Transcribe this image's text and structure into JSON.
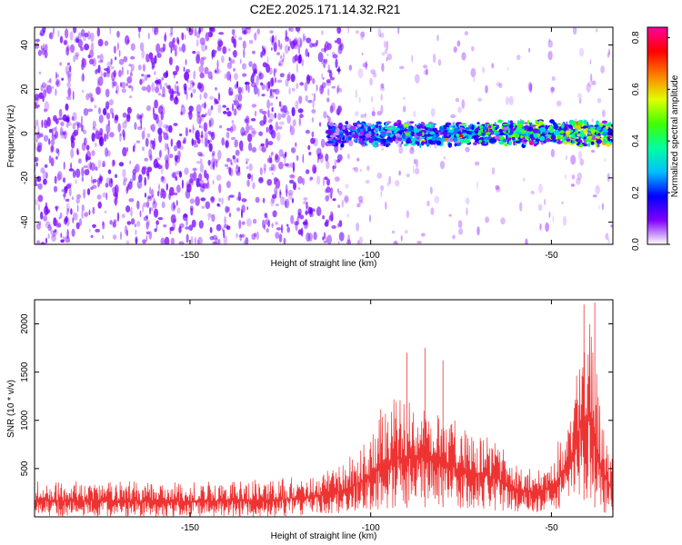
{
  "page_title": "C2E2.2025.171.14.32.R21",
  "chart_data": [
    {
      "type": "heatmap",
      "xlabel": "Height of straight line (km)",
      "ylabel": "Frequency (Hz)",
      "xlim": [
        -193,
        -33
      ],
      "ylim": [
        -50,
        48
      ],
      "x_ticks": [
        -150,
        -100,
        -50
      ],
      "y_ticks": [
        -40,
        -20,
        0,
        20,
        40
      ],
      "colorbar": {
        "label": "Normalized spectral amplitude",
        "range": [
          0.0,
          0.84
        ],
        "ticks": [
          "0.0",
          "0.2",
          "0.4",
          "0.6",
          "0.8"
        ],
        "colormap": [
          "#ffffff",
          "#8000ff",
          "#0000ff",
          "#00c0ff",
          "#00ffa0",
          "#40ff00",
          "#e0ff00",
          "#ff8000",
          "#ff0000",
          "#ff00a0"
        ]
      },
      "features": {
        "noise_region": {
          "x_range": [
            -193,
            -108
          ],
          "max_amplitude": 0.12
        },
        "carrier_band": {
          "x_range": [
            -112,
            -33
          ],
          "frequency_center": 0,
          "frequency_halfwidth": 5,
          "max_amplitude": 0.84
        }
      },
      "grid": false
    },
    {
      "type": "line",
      "xlabel": "Height of straight line (km)",
      "ylabel": "SNR (10 * v/v)",
      "xlim": [
        -193,
        -33
      ],
      "ylim": [
        0,
        2250
      ],
      "x_ticks": [
        -150,
        -100,
        -50
      ],
      "y_ticks": [
        500,
        1000,
        1500,
        2000
      ],
      "color": "#ee3333",
      "envelope": {
        "x": [
          -193,
          -150,
          -125,
          -112,
          -105,
          -100,
          -97,
          -92,
          -88,
          -84,
          -80,
          -76,
          -70,
          -65,
          -60,
          -55,
          -50,
          -47,
          -44,
          -42,
          -40,
          -38,
          -36,
          -33
        ],
        "low": [
          0,
          0,
          0,
          20,
          40,
          60,
          80,
          90,
          100,
          100,
          100,
          90,
          80,
          60,
          50,
          40,
          50,
          80,
          150,
          200,
          150,
          100,
          50,
          0
        ],
        "high": [
          380,
          360,
          400,
          480,
          650,
          900,
          1150,
          1250,
          1300,
          1250,
          1200,
          1000,
          900,
          800,
          600,
          500,
          650,
          900,
          1300,
          1900,
          2200,
          1700,
          1000,
          600
        ]
      },
      "peaks": [
        {
          "x": -41,
          "y": 2200
        },
        {
          "x": -38,
          "y": 2220
        },
        {
          "x": -90,
          "y": 1700
        },
        {
          "x": -85,
          "y": 1750
        },
        {
          "x": -80,
          "y": 1620
        }
      ],
      "grid": false
    }
  ]
}
